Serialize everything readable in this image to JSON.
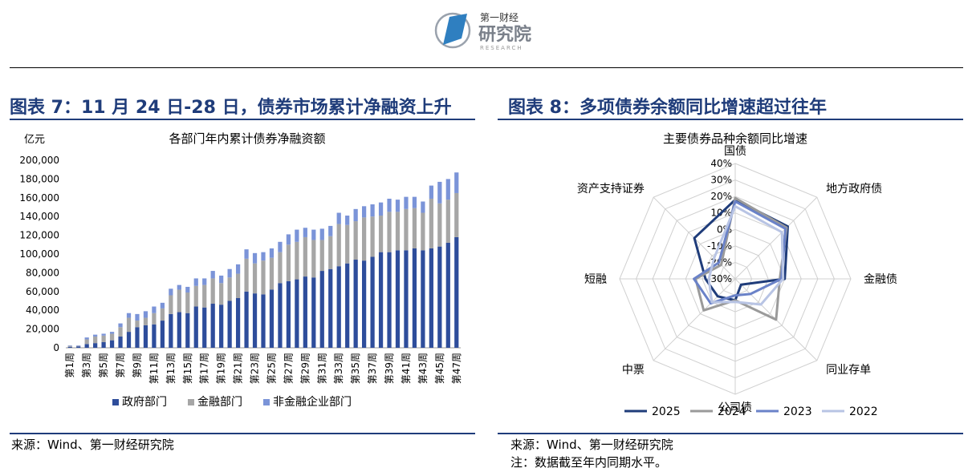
{
  "header": {
    "logo_small": "第一财经",
    "logo_big": "研究院",
    "logo_sub": "RESEARCH",
    "colors": {
      "logo_blue": "#2f7fc0",
      "logo_gray": "#8a8f99"
    }
  },
  "figure7": {
    "heading": "图表 7：11 月 24 日-28 日，债券市场累计净融资上升",
    "source": "来源：Wind、第一财经研究院"
  },
  "figure8": {
    "heading": "图表 8：多项债券余额同比增速超过往年",
    "source": "来源：Wind、第一财经研究院",
    "note": "注：数据截至年内同期水平。"
  },
  "chart_data": [
    {
      "type": "bar",
      "stacked": true,
      "title": "各部门年内累计债券净融资额",
      "ylabel": "亿元",
      "ylim": [
        0,
        200000
      ],
      "yticks": [
        "0",
        "20,000",
        "40,000",
        "60,000",
        "80,000",
        "100,000",
        "120,000",
        "140,000",
        "160,000",
        "180,000",
        "200,000"
      ],
      "categories": [
        "第1周",
        "第2周",
        "第3周",
        "第4周",
        "第5周",
        "第6周",
        "第7周",
        "第8周",
        "第9周",
        "第10周",
        "第11周",
        "第12周",
        "第13周",
        "第14周",
        "第15周",
        "第16周",
        "第17周",
        "第18周",
        "第19周",
        "第20周",
        "第21周",
        "第22周",
        "第23周",
        "第24周",
        "第25周",
        "第26周",
        "第27周",
        "第28周",
        "第29周",
        "第30周",
        "第31周",
        "第32周",
        "第33周",
        "第34周",
        "第35周",
        "第36周",
        "第37周",
        "第38周",
        "第39周",
        "第40周",
        "第41周",
        "第42周",
        "第43周",
        "第44周",
        "第45周",
        "第46周",
        "第47周"
      ],
      "xtick_labels": [
        "第1周",
        "第3周",
        "第5周",
        "第7周",
        "第9周",
        "第11周",
        "第13周",
        "第15周",
        "第17周",
        "第19周",
        "第21周",
        "第23周",
        "第25周",
        "第27周",
        "第29周",
        "第31周",
        "第33周",
        "第35周",
        "第37周",
        "第39周",
        "第41周",
        "第43周",
        "第45周",
        "第47周"
      ],
      "legend_position": "bottom",
      "series": [
        {
          "name": "政府部门",
          "color": "#2e4d9b",
          "values": [
            1000,
            1500,
            4000,
            5000,
            6000,
            8000,
            12000,
            17000,
            22000,
            24000,
            25000,
            29000,
            36000,
            38000,
            37000,
            44000,
            43000,
            47000,
            46000,
            50000,
            53000,
            60000,
            58000,
            57000,
            62000,
            69000,
            71000,
            73000,
            76000,
            75000,
            82000,
            84000,
            87000,
            90000,
            94000,
            93000,
            97000,
            102000,
            102000,
            104000,
            104000,
            106000,
            104000,
            106000,
            108000,
            112000,
            118000
          ]
        },
        {
          "name": "金融部门",
          "color": "#a6a6a6",
          "values": [
            1000,
            500,
            5000,
            7000,
            7000,
            7000,
            10000,
            15000,
            7000,
            8000,
            12000,
            13000,
            20000,
            24000,
            22000,
            22000,
            24000,
            27000,
            23000,
            25000,
            26000,
            35000,
            32000,
            36000,
            34000,
            33000,
            39000,
            40000,
            42000,
            40000,
            33000,
            35000,
            45000,
            41000,
            41000,
            46000,
            43000,
            39000,
            43000,
            41000,
            44000,
            43000,
            40000,
            53000,
            46000,
            46000,
            47000
          ]
        },
        {
          "name": "非金融企业部门",
          "color": "#7b94d8",
          "values": [
            500,
            500,
            2000,
            2000,
            2000,
            2000,
            4000,
            5000,
            7000,
            7000,
            7000,
            6000,
            7000,
            5000,
            6000,
            8000,
            7000,
            8000,
            8000,
            9000,
            10000,
            10000,
            11000,
            9000,
            10000,
            11000,
            11000,
            13000,
            10000,
            11000,
            12000,
            11000,
            12000,
            10000,
            13000,
            12000,
            13000,
            14000,
            14000,
            13000,
            13000,
            12000,
            12000,
            14000,
            23000,
            22000,
            22000
          ]
        }
      ]
    },
    {
      "type": "radar",
      "title": "主要债券品种余额同比增速",
      "axes": [
        "国债",
        "地方政府债",
        "金融债",
        "同业存单",
        "公司债",
        "中票",
        "短融",
        "资产支持证券"
      ],
      "rlim": [
        -30,
        40
      ],
      "rticks": [
        "40%",
        "30%",
        "20%",
        "10%",
        "0%",
        "-10%",
        "-20%",
        "-30%"
      ],
      "legend_position": "bottom",
      "series": [
        {
          "name": "2025",
          "color": "#1f3c7a",
          "values": [
            18,
            15,
            0,
            -25,
            -17,
            -15,
            -12,
            5
          ]
        },
        {
          "name": "2024",
          "color": "#9a9a9a",
          "values": [
            19,
            14,
            -3,
            5,
            -17,
            -3,
            -6,
            -18
          ]
        },
        {
          "name": "2023",
          "color": "#6a82c8",
          "values": [
            17,
            13,
            -2,
            -17,
            -20,
            -9,
            -5,
            -16
          ]
        },
        {
          "name": "2022",
          "color": "#b8c4e4",
          "values": [
            14,
            10,
            -1,
            -8,
            -16,
            -10,
            -14,
            -12
          ]
        }
      ]
    }
  ]
}
